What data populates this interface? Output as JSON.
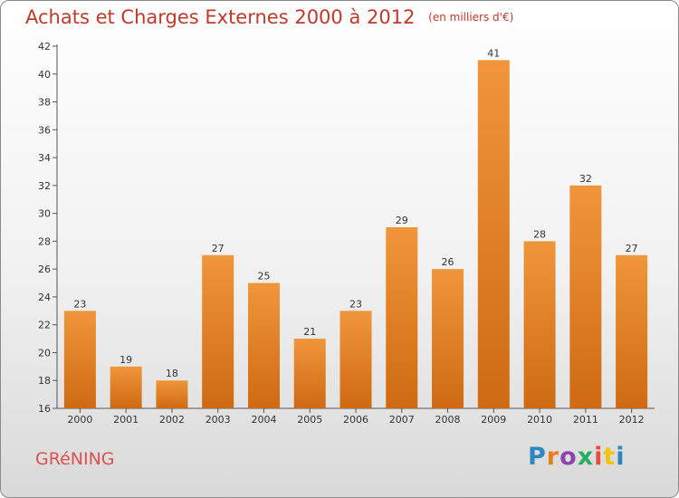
{
  "chart_data": {
    "type": "bar",
    "title": "Achats et Charges Externes 2000 à 2012",
    "subtitle": "(en milliers d'€)",
    "categories": [
      "2000",
      "2001",
      "2002",
      "2003",
      "2004",
      "2005",
      "2006",
      "2007",
      "2008",
      "2009",
      "2010",
      "2011",
      "2012"
    ],
    "values": [
      23,
      19,
      18,
      27,
      25,
      21,
      23,
      29,
      26,
      41,
      28,
      32,
      27
    ],
    "ylim": [
      16,
      42
    ],
    "yticks": [
      16,
      18,
      20,
      22,
      24,
      26,
      28,
      30,
      32,
      34,
      36,
      38,
      40,
      42
    ],
    "grid": false,
    "bar_color": "#f0963a",
    "bar_color_dark": "#cf6a12"
  },
  "footer": {
    "commune": "GRéNING",
    "logo": "Proxiti"
  }
}
